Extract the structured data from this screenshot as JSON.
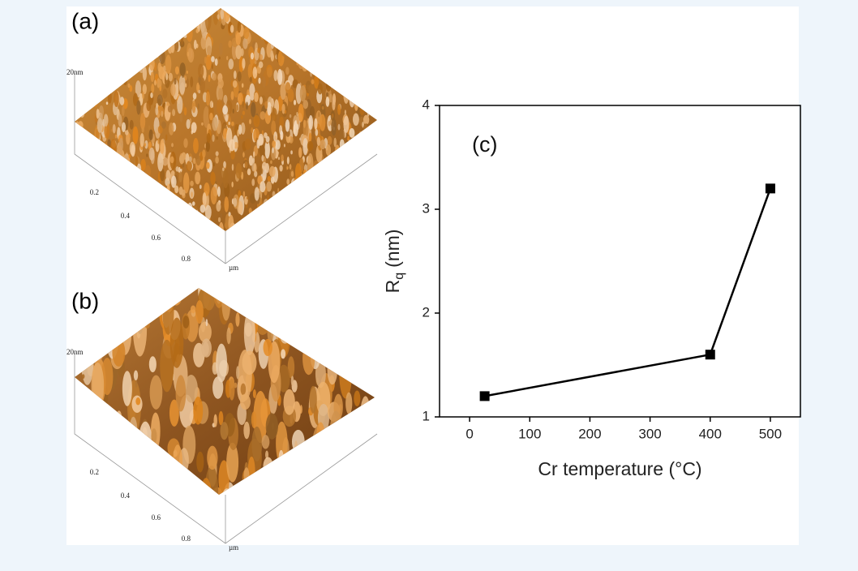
{
  "panels": [
    {
      "label": "(a)",
      "z_label": "20nm",
      "ticks": [
        "0.2",
        "0.4",
        "0.6",
        "0.8"
      ],
      "unit": "µm"
    },
    {
      "label": "(b)",
      "z_label": "20nm",
      "ticks": [
        "0.2",
        "0.4",
        "0.6",
        "0.8"
      ],
      "unit": "µm"
    }
  ],
  "chart_data": {
    "type": "line",
    "annotation": "(c)",
    "x_label": "Cr temperature (°C)",
    "y_label": {
      "main": "R",
      "sub": "q",
      "rest": "(nm)"
    },
    "x": [
      25,
      400,
      500
    ],
    "values": [
      1.2,
      1.6,
      3.2
    ],
    "color": "#000000",
    "xlim": [
      -50,
      550
    ],
    "xticks": [
      0,
      100,
      200,
      300,
      400,
      500
    ],
    "ylim": [
      1,
      4
    ],
    "yticks": [
      1,
      2,
      3,
      4
    ]
  }
}
